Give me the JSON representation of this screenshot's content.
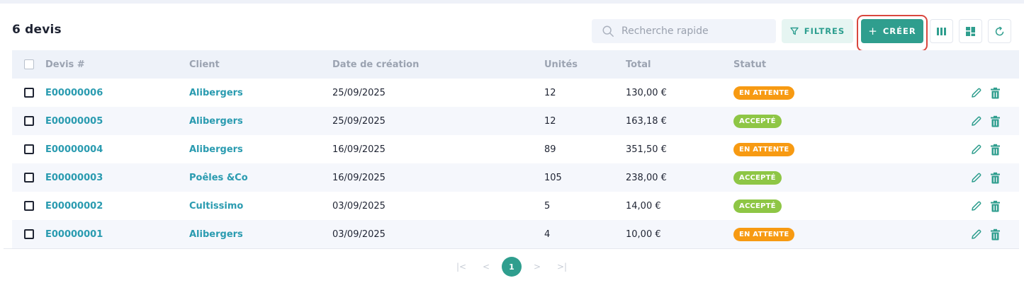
{
  "header": {
    "title": "6 devis"
  },
  "toolbar": {
    "search_placeholder": "Recherche rapide",
    "filters_label": "FILTRES",
    "create_plus": "+",
    "create_label": "CRÉER",
    "icons": [
      "columns-icon",
      "layout-grid-icon",
      "refresh-icon"
    ]
  },
  "table": {
    "columns": [
      "Devis #",
      "Client",
      "Date de création",
      "Unités",
      "Total",
      "Statut"
    ],
    "rows": [
      {
        "id": "E00000006",
        "client": "Alibergers",
        "date": "25/09/2025",
        "units": "12",
        "total": "130,00 €",
        "status": "EN ATTENTE",
        "status_kind": "pending"
      },
      {
        "id": "E00000005",
        "client": "Alibergers",
        "date": "25/09/2025",
        "units": "12",
        "total": "163,18 €",
        "status": "ACCEPTÉ",
        "status_kind": "accepted"
      },
      {
        "id": "E00000004",
        "client": "Alibergers",
        "date": "16/09/2025",
        "units": "89",
        "total": "351,50 €",
        "status": "EN ATTENTE",
        "status_kind": "pending"
      },
      {
        "id": "E00000003",
        "client": "Poêles &Co",
        "date": "16/09/2025",
        "units": "105",
        "total": "238,00 €",
        "status": "ACCEPTÉ",
        "status_kind": "accepted"
      },
      {
        "id": "E00000002",
        "client": "Cultissimo",
        "date": "03/09/2025",
        "units": "5",
        "total": "14,00 €",
        "status": "ACCEPTÉ",
        "status_kind": "accepted"
      },
      {
        "id": "E00000001",
        "client": "Alibergers",
        "date": "03/09/2025",
        "units": "4",
        "total": "10,00 €",
        "status": "EN ATTENTE",
        "status_kind": "pending"
      }
    ]
  },
  "pagination": {
    "first": "|<",
    "prev": "<",
    "current": "1",
    "next": ">",
    "last": ">|"
  },
  "colors": {
    "accent": "#2f9e8e",
    "link": "#2a9bb0",
    "pending": "#f79a12",
    "accepted": "#8ec645",
    "highlight_outline": "#d9473e"
  }
}
